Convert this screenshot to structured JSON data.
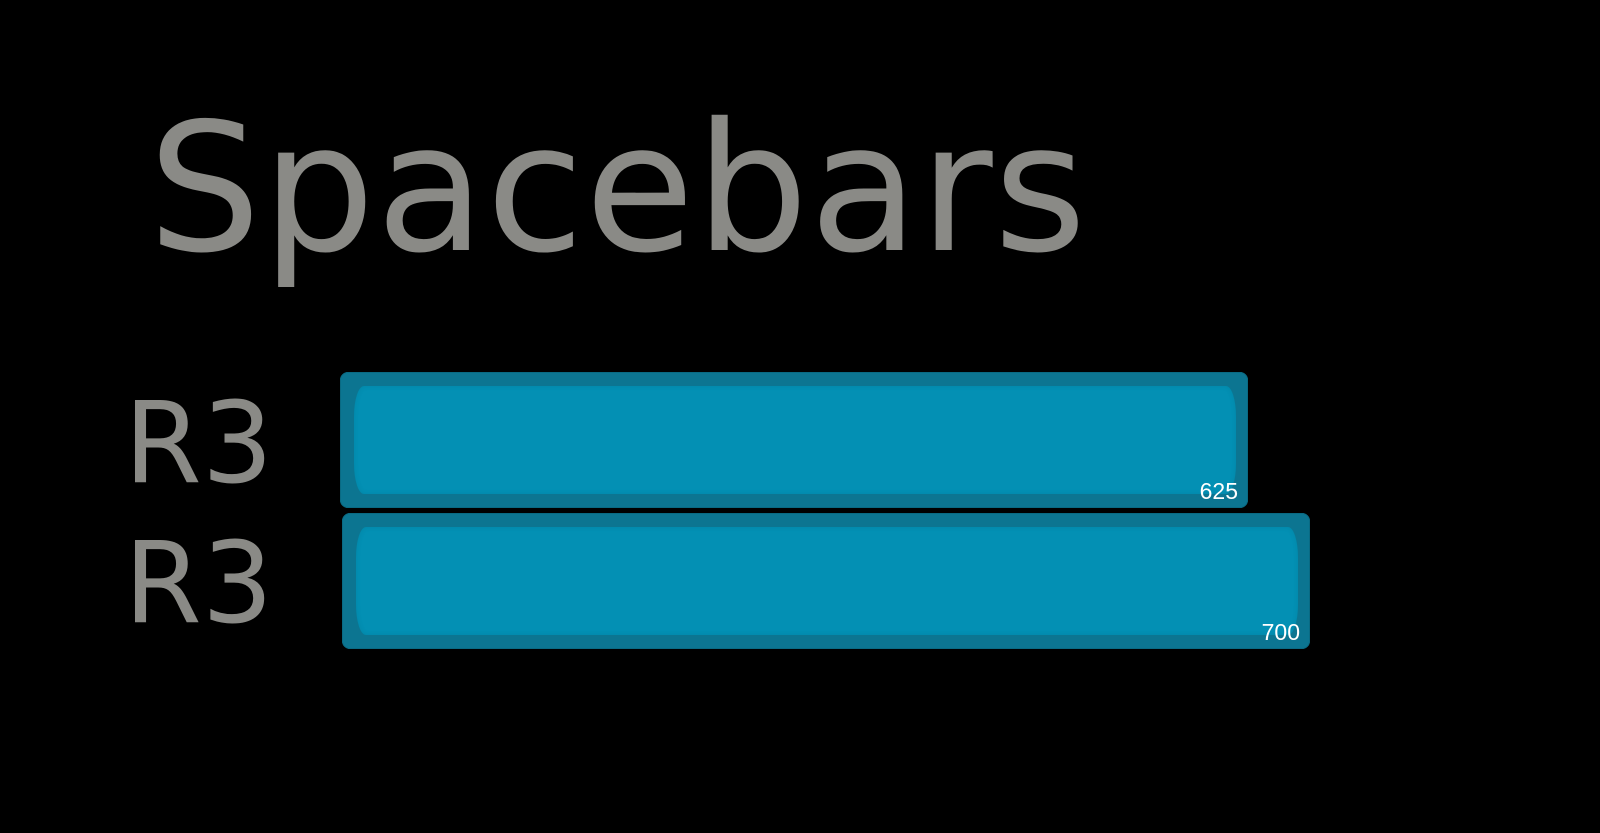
{
  "title": "Spacebars",
  "keys": [
    {
      "row": "R3",
      "size_label": "625"
    },
    {
      "row": "R3",
      "size_label": "700"
    }
  ],
  "colors": {
    "background": "#000000",
    "text": "#8a8a86",
    "key_body": "#0c7591",
    "key_top": "#0390b4",
    "key_label": "#ffffff"
  }
}
